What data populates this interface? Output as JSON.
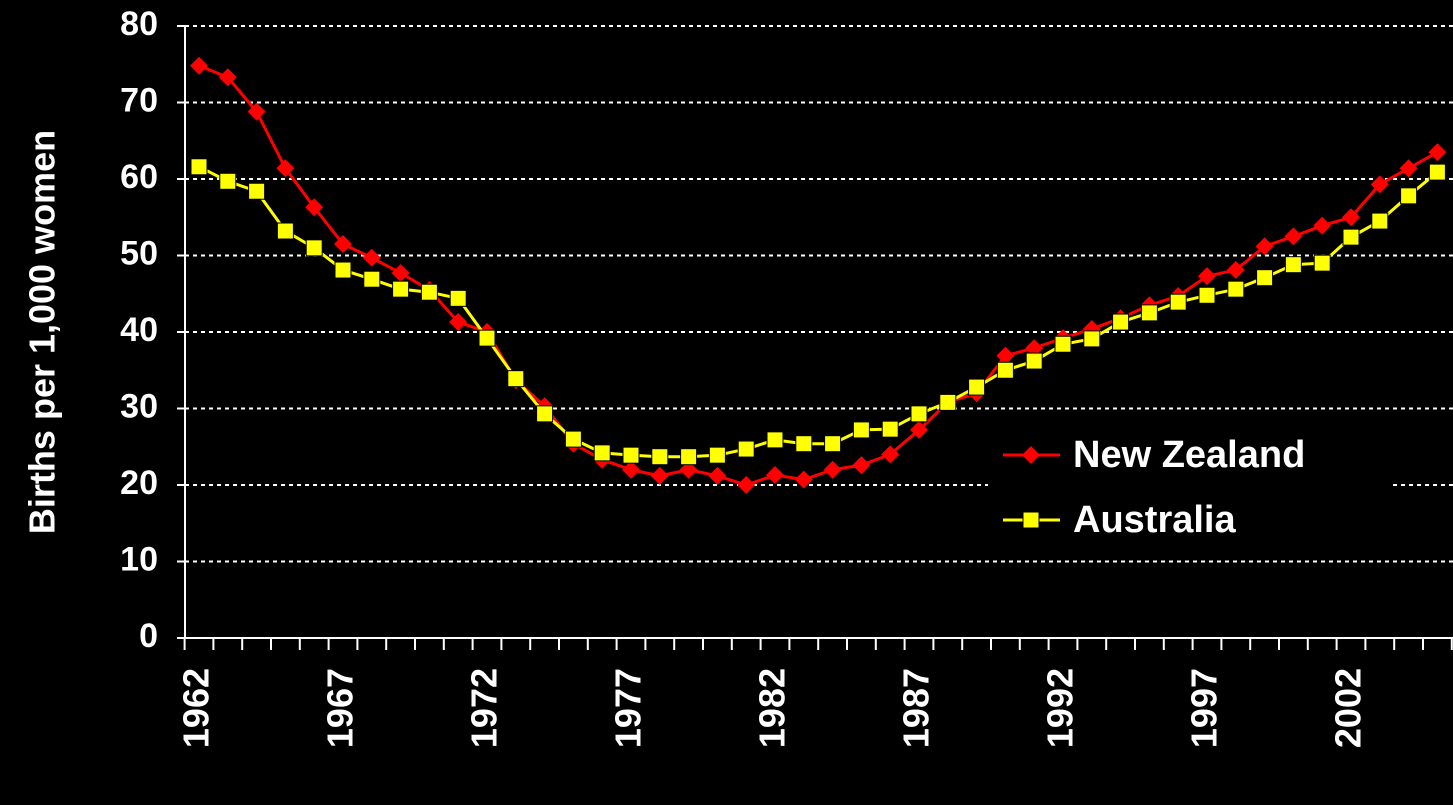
{
  "chart_data": {
    "type": "line",
    "y_label": "Births per 1,000 women",
    "categories": [
      "1962",
      null,
      null,
      null,
      null,
      "1967",
      null,
      null,
      null,
      null,
      "1972",
      null,
      null,
      null,
      null,
      "1977",
      null,
      null,
      null,
      null,
      "1982",
      null,
      null,
      null,
      null,
      "1987",
      null,
      null,
      null,
      null,
      "1992",
      null,
      null,
      null,
      null,
      "1997",
      null,
      null,
      null,
      null,
      "2002",
      null,
      null,
      null
    ],
    "series": [
      {
        "name": "New Zealand",
        "color": "#ff0000",
        "marker": "diamond",
        "values": [
          74.8,
          73.3,
          68.8,
          61.4,
          56.3,
          51.5,
          49.7,
          47.7,
          45.5,
          41.3,
          40,
          33.7,
          30.3,
          25.4,
          23.3,
          22,
          21.2,
          22,
          21.2,
          20,
          21.3,
          20.7,
          22,
          22.6,
          24,
          27.2,
          30.8,
          32,
          36.9,
          37.9,
          39.2,
          40.4,
          41.8,
          43.5,
          44.7,
          47.3,
          48.1,
          51.2,
          52.5,
          53.9,
          55,
          59.3,
          61.4,
          63.5
        ]
      },
      {
        "name": "Australia",
        "color": "#ffff00",
        "marker": "square",
        "values": [
          61.6,
          59.7,
          58.4,
          53.2,
          51,
          48.1,
          46.9,
          45.6,
          45.2,
          44.4,
          39.2,
          33.9,
          29.3,
          26,
          24.2,
          23.9,
          23.7,
          23.7,
          23.9,
          24.7,
          25.9,
          25.4,
          25.4,
          27.2,
          27.3,
          29.3,
          30.8,
          32.8,
          35,
          36.2,
          38.4,
          39.1,
          41.3,
          42.5,
          43.9,
          44.8,
          45.6,
          47.1,
          48.8,
          49,
          52.4,
          54.5,
          57.8,
          60.9
        ]
      }
    ],
    "ylim": [
      0,
      80
    ],
    "yticks": [
      0,
      10,
      20,
      30,
      40,
      50,
      60,
      70,
      80
    ],
    "grid": true,
    "legend": "right"
  }
}
